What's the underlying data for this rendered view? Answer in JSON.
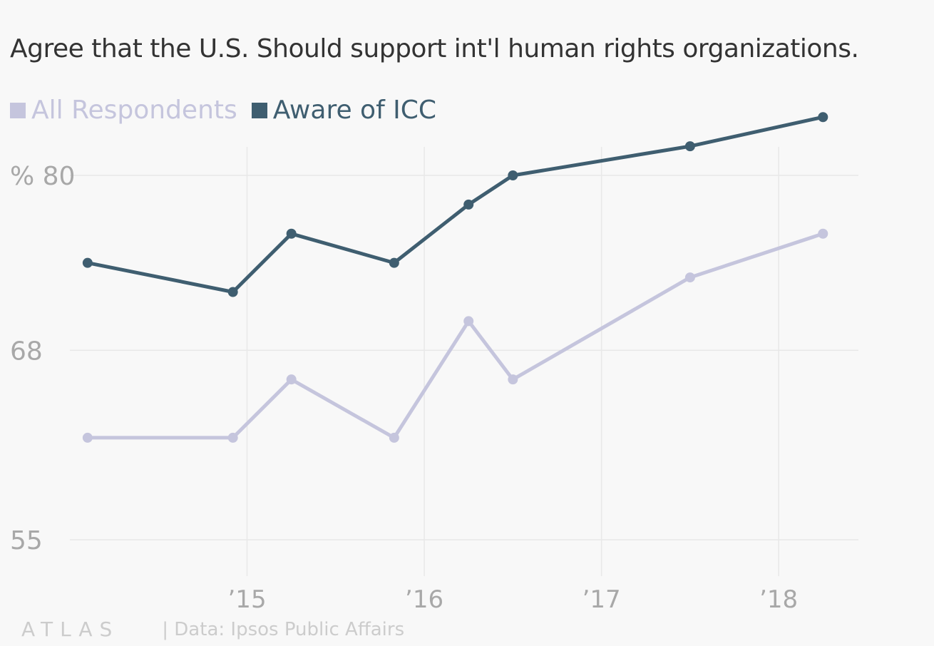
{
  "chart_data": {
    "type": "line",
    "title": "Agree that the U.S. Should support int'l human rights organizations.",
    "y_unit_label": "%",
    "xlim": [
      2014.0,
      2018.45
    ],
    "ylim": [
      55,
      80
    ],
    "yticks": [
      {
        "value": 80,
        "label": "% 80"
      },
      {
        "value": 68,
        "label": "68"
      },
      {
        "value": 55,
        "label": "55"
      }
    ],
    "xticks": [
      {
        "value": 2015,
        "label": "’15"
      },
      {
        "value": 2016,
        "label": "’16"
      },
      {
        "value": 2017,
        "label": "’17"
      },
      {
        "value": 2018,
        "label": "’18"
      }
    ],
    "grid": true,
    "legend_position": "top-left",
    "series": [
      {
        "name": "All Respondents",
        "color": "#c5c5dd",
        "points": [
          {
            "x": 2014.1,
            "y": 62
          },
          {
            "x": 2014.92,
            "y": 62
          },
          {
            "x": 2015.25,
            "y": 66
          },
          {
            "x": 2015.83,
            "y": 62
          },
          {
            "x": 2016.25,
            "y": 70
          },
          {
            "x": 2016.5,
            "y": 66
          },
          {
            "x": 2017.5,
            "y": 73
          },
          {
            "x": 2018.25,
            "y": 76
          }
        ]
      },
      {
        "name": "Aware of ICC",
        "color": "#3f5e70",
        "points": [
          {
            "x": 2014.1,
            "y": 74
          },
          {
            "x": 2014.92,
            "y": 72
          },
          {
            "x": 2015.25,
            "y": 76
          },
          {
            "x": 2015.83,
            "y": 74
          },
          {
            "x": 2016.25,
            "y": 78
          },
          {
            "x": 2016.5,
            "y": 80
          },
          {
            "x": 2017.5,
            "y": 82
          },
          {
            "x": 2018.25,
            "y": 84
          }
        ]
      }
    ]
  },
  "footer": {
    "brand": "ATLAS",
    "source": "| Data: Ipsos Public Affairs"
  }
}
